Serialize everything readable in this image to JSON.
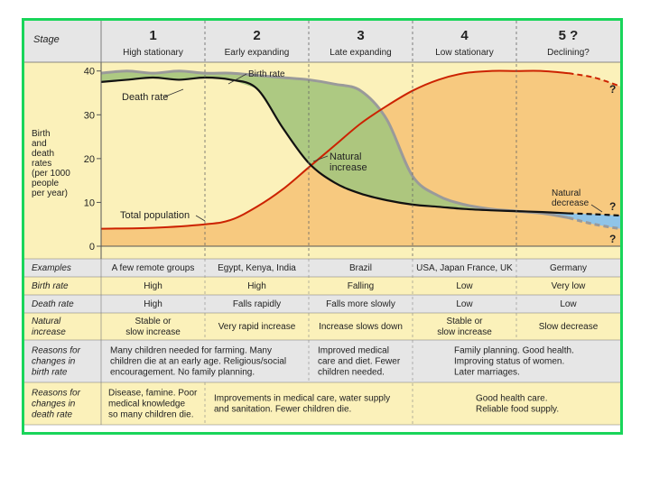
{
  "stage_header": "Stage",
  "stages": [
    {
      "number": "1",
      "name": "High stationary"
    },
    {
      "number": "2",
      "name": "Early expanding"
    },
    {
      "number": "3",
      "name": "Late expanding"
    },
    {
      "number": "4",
      "name": "Low stationary"
    },
    {
      "number": "5 ?",
      "name": "Declining?"
    }
  ],
  "y_label_lines": [
    "Birth",
    "and",
    "death",
    "rates",
    "(per 1000",
    "people",
    "per year)"
  ],
  "chart_data": {
    "type": "line",
    "ylabel": "Birth and death rates (per 1000 people per year)",
    "ylim": [
      0,
      42
    ],
    "yticks": [
      0,
      10,
      20,
      30,
      40
    ],
    "x_stage_bounds": [
      0,
      1,
      2,
      3,
      4,
      5
    ],
    "series": [
      {
        "name": "Birth rate",
        "color": "#9a9a9a",
        "x": [
          0,
          0.25,
          0.5,
          0.75,
          1,
          1.25,
          1.5,
          1.75,
          2,
          2.25,
          2.5,
          2.75,
          3,
          3.25,
          3.5,
          3.75,
          4,
          4.25,
          4.5,
          4.75,
          5
        ],
        "y": [
          39.5,
          40,
          39.5,
          40,
          39.5,
          39.5,
          39,
          38.5,
          38,
          37,
          35.5,
          29,
          16,
          11.5,
          9.5,
          8.5,
          8,
          7.5,
          6.5,
          5,
          4
        ]
      },
      {
        "name": "Death rate",
        "color": "#111111",
        "x": [
          0,
          0.25,
          0.5,
          0.75,
          1,
          1.25,
          1.5,
          1.75,
          2,
          2.25,
          2.5,
          2.75,
          3,
          3.25,
          3.5,
          3.75,
          4,
          4.25,
          4.5,
          4.75,
          5
        ],
        "y": [
          37.5,
          38,
          38.5,
          38,
          38.5,
          38,
          36,
          27,
          19,
          14.5,
          12,
          10.5,
          9.5,
          9,
          8.5,
          8.2,
          8,
          7.8,
          7.5,
          7.3,
          7
        ]
      },
      {
        "name": "Total population",
        "color": "#cc2200",
        "x": [
          0,
          0.5,
          1,
          1.25,
          1.5,
          1.75,
          2,
          2.25,
          2.5,
          2.75,
          3,
          3.25,
          3.5,
          3.75,
          4,
          4.25,
          4.5,
          4.75,
          5
        ],
        "y": [
          4,
          4.2,
          5,
          6,
          9,
          13,
          18,
          23,
          28,
          32,
          35.5,
          38,
          39.5,
          40,
          40,
          40,
          39.5,
          38.5,
          36.5
        ]
      }
    ],
    "annotations": [
      "Birth rate",
      "Death rate",
      "Total population",
      "Natural increase",
      "Natural decrease",
      "?",
      "?",
      "?"
    ],
    "annotation_text": {
      "birth_rate": "Birth rate",
      "death_rate": "Death rate",
      "total_population": "Total population",
      "natural_increase": [
        "Natural",
        "increase"
      ],
      "natural_decrease": [
        "Natural",
        "decrease"
      ],
      "question": "?"
    }
  },
  "table": {
    "rows": [
      {
        "label_lines": [
          "Examples"
        ],
        "cells": [
          [
            "A few remote groups"
          ],
          [
            "Egypt, Kenya, India"
          ],
          [
            "Brazil"
          ],
          [
            "USA, Japan France, UK"
          ],
          [
            "Germany"
          ]
        ]
      },
      {
        "label_lines": [
          "Birth rate"
        ],
        "cells": [
          [
            "High"
          ],
          [
            "High"
          ],
          [
            "Falling"
          ],
          [
            "Low"
          ],
          [
            "Very low"
          ]
        ]
      },
      {
        "label_lines": [
          "Death rate"
        ],
        "cells": [
          [
            "High"
          ],
          [
            "Falls rapidly"
          ],
          [
            "Falls more slowly"
          ],
          [
            "Low"
          ],
          [
            "Low"
          ]
        ]
      },
      {
        "label_lines": [
          "Natural",
          "increase"
        ],
        "cells": [
          [
            "Stable or",
            "slow increase"
          ],
          [
            "Very rapid increase"
          ],
          [
            "Increase slows down"
          ],
          [
            "Stable or",
            "slow increase"
          ],
          [
            "Slow decrease"
          ]
        ]
      }
    ],
    "reasons_birth": {
      "label_lines": [
        "Reasons for",
        "changes in",
        "birth rate"
      ],
      "stage12": [
        "Many children needed for farming. Many",
        "children die at an early age. Religious/social",
        "encouragement. No family planning."
      ],
      "stage3": [
        "Improved medical",
        "care and diet. Fewer",
        "children needed."
      ],
      "stage45": [
        "Family planning. Good health.",
        "Improving status of women.",
        "Later marriages."
      ]
    },
    "reasons_death": {
      "label_lines": [
        "Reasons for",
        "changes in",
        "death rate"
      ],
      "stage1": [
        "Disease, famine. Poor",
        "medical knowledge",
        "so many children die."
      ],
      "stage23": [
        "Improvements in medical care, water supply",
        "and sanitation. Fewer children die."
      ],
      "stage45": [
        "Good health care.",
        "Reliable food supply."
      ]
    }
  },
  "colors": {
    "frame": "#19d55a",
    "stage_bg": "#fbf1ba",
    "header_bg": "#e6e6e6",
    "increase_fill": "#a9c67e",
    "population_fill": "#f7c97f",
    "decrease_fill": "#8fc4e8",
    "table_alt": "#e6e6e6"
  }
}
